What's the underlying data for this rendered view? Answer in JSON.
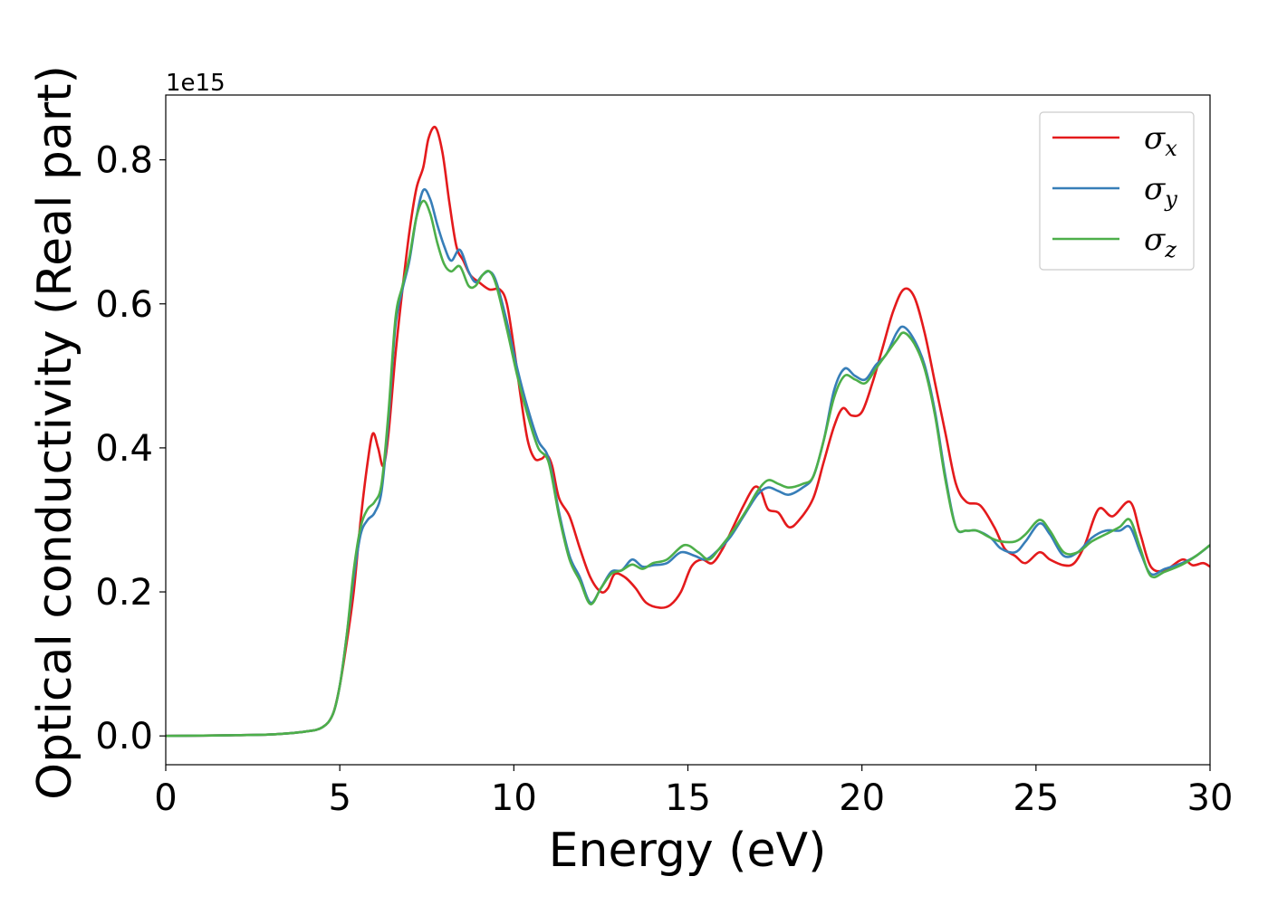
{
  "chart_data": {
    "type": "line",
    "xlabel": "Energy (eV)",
    "ylabel": "Optical conductivity (Real part)",
    "y_offset_label": "1e15",
    "xlim": [
      0,
      30
    ],
    "ylim": [
      -0.04,
      0.89
    ],
    "x_ticks": [
      0,
      5,
      10,
      15,
      20,
      25,
      30
    ],
    "y_ticks": [
      0.0,
      0.2,
      0.4,
      0.6,
      0.8
    ],
    "grid": false,
    "legend_position": "top-right",
    "series": [
      {
        "name": "σx",
        "symbol": "σ",
        "subscript": "x",
        "color": "#e41a1c",
        "points": [
          [
            0,
            0
          ],
          [
            2,
            0.001
          ],
          [
            3,
            0.002
          ],
          [
            4,
            0.006
          ],
          [
            4.5,
            0.012
          ],
          [
            4.8,
            0.03
          ],
          [
            5.0,
            0.07
          ],
          [
            5.2,
            0.13
          ],
          [
            5.4,
            0.2
          ],
          [
            5.6,
            0.3
          ],
          [
            5.8,
            0.38
          ],
          [
            5.95,
            0.42
          ],
          [
            6.1,
            0.4
          ],
          [
            6.25,
            0.375
          ],
          [
            6.4,
            0.42
          ],
          [
            6.6,
            0.53
          ],
          [
            6.8,
            0.62
          ],
          [
            7.0,
            0.7
          ],
          [
            7.2,
            0.76
          ],
          [
            7.4,
            0.79
          ],
          [
            7.55,
            0.83
          ],
          [
            7.75,
            0.845
          ],
          [
            7.95,
            0.81
          ],
          [
            8.15,
            0.74
          ],
          [
            8.35,
            0.68
          ],
          [
            8.55,
            0.66
          ],
          [
            8.75,
            0.64
          ],
          [
            9.0,
            0.63
          ],
          [
            9.3,
            0.62
          ],
          [
            9.6,
            0.62
          ],
          [
            9.8,
            0.6
          ],
          [
            10.0,
            0.54
          ],
          [
            10.2,
            0.47
          ],
          [
            10.4,
            0.41
          ],
          [
            10.6,
            0.385
          ],
          [
            10.8,
            0.385
          ],
          [
            10.95,
            0.39
          ],
          [
            11.1,
            0.375
          ],
          [
            11.3,
            0.33
          ],
          [
            11.6,
            0.305
          ],
          [
            11.9,
            0.26
          ],
          [
            12.2,
            0.22
          ],
          [
            12.5,
            0.2
          ],
          [
            12.7,
            0.205
          ],
          [
            12.9,
            0.225
          ],
          [
            13.2,
            0.22
          ],
          [
            13.5,
            0.205
          ],
          [
            13.8,
            0.185
          ],
          [
            14.2,
            0.178
          ],
          [
            14.5,
            0.182
          ],
          [
            14.8,
            0.2
          ],
          [
            15.1,
            0.235
          ],
          [
            15.4,
            0.245
          ],
          [
            15.7,
            0.24
          ],
          [
            16.0,
            0.26
          ],
          [
            16.3,
            0.29
          ],
          [
            16.6,
            0.32
          ],
          [
            16.9,
            0.345
          ],
          [
            17.1,
            0.34
          ],
          [
            17.3,
            0.315
          ],
          [
            17.6,
            0.31
          ],
          [
            17.9,
            0.29
          ],
          [
            18.2,
            0.3
          ],
          [
            18.6,
            0.33
          ],
          [
            18.9,
            0.38
          ],
          [
            19.2,
            0.43
          ],
          [
            19.45,
            0.455
          ],
          [
            19.7,
            0.445
          ],
          [
            20.0,
            0.45
          ],
          [
            20.3,
            0.49
          ],
          [
            20.6,
            0.54
          ],
          [
            20.9,
            0.59
          ],
          [
            21.2,
            0.62
          ],
          [
            21.5,
            0.61
          ],
          [
            21.8,
            0.56
          ],
          [
            22.1,
            0.49
          ],
          [
            22.4,
            0.42
          ],
          [
            22.7,
            0.35
          ],
          [
            23.0,
            0.325
          ],
          [
            23.4,
            0.32
          ],
          [
            23.8,
            0.29
          ],
          [
            24.1,
            0.26
          ],
          [
            24.4,
            0.25
          ],
          [
            24.7,
            0.24
          ],
          [
            25.1,
            0.255
          ],
          [
            25.4,
            0.245
          ],
          [
            25.8,
            0.237
          ],
          [
            26.1,
            0.24
          ],
          [
            26.4,
            0.265
          ],
          [
            26.8,
            0.315
          ],
          [
            27.2,
            0.305
          ],
          [
            27.7,
            0.325
          ],
          [
            28.0,
            0.28
          ],
          [
            28.3,
            0.235
          ],
          [
            28.7,
            0.23
          ],
          [
            29.2,
            0.245
          ],
          [
            29.5,
            0.237
          ],
          [
            29.8,
            0.24
          ],
          [
            30.0,
            0.235
          ]
        ]
      },
      {
        "name": "σy",
        "symbol": "σ",
        "subscript": "y",
        "color": "#377eb8",
        "points": [
          [
            0,
            0
          ],
          [
            2,
            0.001
          ],
          [
            3,
            0.002
          ],
          [
            4,
            0.006
          ],
          [
            4.5,
            0.012
          ],
          [
            4.8,
            0.03
          ],
          [
            5.0,
            0.07
          ],
          [
            5.2,
            0.14
          ],
          [
            5.4,
            0.22
          ],
          [
            5.6,
            0.28
          ],
          [
            5.8,
            0.3
          ],
          [
            6.0,
            0.31
          ],
          [
            6.2,
            0.34
          ],
          [
            6.4,
            0.44
          ],
          [
            6.6,
            0.57
          ],
          [
            6.8,
            0.62
          ],
          [
            7.0,
            0.66
          ],
          [
            7.2,
            0.72
          ],
          [
            7.4,
            0.758
          ],
          [
            7.6,
            0.745
          ],
          [
            7.8,
            0.71
          ],
          [
            8.0,
            0.68
          ],
          [
            8.2,
            0.66
          ],
          [
            8.45,
            0.675
          ],
          [
            8.7,
            0.645
          ],
          [
            8.9,
            0.63
          ],
          [
            9.1,
            0.64
          ],
          [
            9.3,
            0.645
          ],
          [
            9.5,
            0.63
          ],
          [
            9.8,
            0.575
          ],
          [
            10.1,
            0.51
          ],
          [
            10.4,
            0.455
          ],
          [
            10.7,
            0.41
          ],
          [
            11.0,
            0.385
          ],
          [
            11.3,
            0.31
          ],
          [
            11.6,
            0.25
          ],
          [
            11.9,
            0.22
          ],
          [
            12.2,
            0.185
          ],
          [
            12.5,
            0.205
          ],
          [
            12.8,
            0.228
          ],
          [
            13.1,
            0.23
          ],
          [
            13.4,
            0.245
          ],
          [
            13.7,
            0.235
          ],
          [
            14.0,
            0.237
          ],
          [
            14.4,
            0.24
          ],
          [
            14.8,
            0.255
          ],
          [
            15.2,
            0.25
          ],
          [
            15.5,
            0.245
          ],
          [
            15.8,
            0.255
          ],
          [
            16.2,
            0.275
          ],
          [
            16.6,
            0.305
          ],
          [
            17.0,
            0.335
          ],
          [
            17.3,
            0.345
          ],
          [
            17.6,
            0.34
          ],
          [
            17.9,
            0.335
          ],
          [
            18.3,
            0.345
          ],
          [
            18.6,
            0.36
          ],
          [
            18.9,
            0.41
          ],
          [
            19.2,
            0.48
          ],
          [
            19.5,
            0.51
          ],
          [
            19.8,
            0.5
          ],
          [
            20.1,
            0.495
          ],
          [
            20.4,
            0.515
          ],
          [
            20.7,
            0.53
          ],
          [
            21.0,
            0.56
          ],
          [
            21.2,
            0.568
          ],
          [
            21.5,
            0.55
          ],
          [
            21.8,
            0.515
          ],
          [
            22.1,
            0.45
          ],
          [
            22.4,
            0.36
          ],
          [
            22.7,
            0.29
          ],
          [
            23.0,
            0.285
          ],
          [
            23.3,
            0.285
          ],
          [
            23.7,
            0.275
          ],
          [
            24.0,
            0.26
          ],
          [
            24.4,
            0.255
          ],
          [
            24.7,
            0.27
          ],
          [
            25.1,
            0.295
          ],
          [
            25.4,
            0.28
          ],
          [
            25.8,
            0.25
          ],
          [
            26.2,
            0.255
          ],
          [
            26.6,
            0.275
          ],
          [
            27.0,
            0.285
          ],
          [
            27.4,
            0.285
          ],
          [
            27.7,
            0.29
          ],
          [
            28.0,
            0.255
          ],
          [
            28.3,
            0.225
          ],
          [
            28.7,
            0.232
          ],
          [
            29.2,
            0.24
          ],
          [
            29.6,
            0.25
          ],
          [
            30.0,
            0.265
          ]
        ]
      },
      {
        "name": "σz",
        "symbol": "σ",
        "subscript": "z",
        "color": "#4daf4a",
        "points": [
          [
            0,
            0
          ],
          [
            2,
            0.001
          ],
          [
            3,
            0.002
          ],
          [
            4,
            0.006
          ],
          [
            4.5,
            0.012
          ],
          [
            4.8,
            0.03
          ],
          [
            5.0,
            0.07
          ],
          [
            5.2,
            0.14
          ],
          [
            5.4,
            0.23
          ],
          [
            5.6,
            0.29
          ],
          [
            5.8,
            0.315
          ],
          [
            6.0,
            0.325
          ],
          [
            6.2,
            0.35
          ],
          [
            6.4,
            0.45
          ],
          [
            6.6,
            0.58
          ],
          [
            6.8,
            0.625
          ],
          [
            7.0,
            0.665
          ],
          [
            7.2,
            0.72
          ],
          [
            7.4,
            0.743
          ],
          [
            7.6,
            0.725
          ],
          [
            7.8,
            0.685
          ],
          [
            8.0,
            0.655
          ],
          [
            8.2,
            0.645
          ],
          [
            8.45,
            0.652
          ],
          [
            8.7,
            0.625
          ],
          [
            8.9,
            0.625
          ],
          [
            9.1,
            0.64
          ],
          [
            9.3,
            0.645
          ],
          [
            9.5,
            0.625
          ],
          [
            9.8,
            0.565
          ],
          [
            10.1,
            0.5
          ],
          [
            10.4,
            0.445
          ],
          [
            10.7,
            0.4
          ],
          [
            11.0,
            0.38
          ],
          [
            11.3,
            0.305
          ],
          [
            11.6,
            0.245
          ],
          [
            11.9,
            0.215
          ],
          [
            12.2,
            0.183
          ],
          [
            12.5,
            0.205
          ],
          [
            12.8,
            0.225
          ],
          [
            13.1,
            0.23
          ],
          [
            13.4,
            0.238
          ],
          [
            13.7,
            0.232
          ],
          [
            14.0,
            0.24
          ],
          [
            14.4,
            0.245
          ],
          [
            14.9,
            0.265
          ],
          [
            15.3,
            0.255
          ],
          [
            15.6,
            0.245
          ],
          [
            15.9,
            0.26
          ],
          [
            16.3,
            0.285
          ],
          [
            16.7,
            0.315
          ],
          [
            17.0,
            0.34
          ],
          [
            17.3,
            0.355
          ],
          [
            17.6,
            0.35
          ],
          [
            17.9,
            0.345
          ],
          [
            18.3,
            0.35
          ],
          [
            18.6,
            0.36
          ],
          [
            18.9,
            0.41
          ],
          [
            19.2,
            0.47
          ],
          [
            19.5,
            0.5
          ],
          [
            19.8,
            0.495
          ],
          [
            20.1,
            0.49
          ],
          [
            20.4,
            0.51
          ],
          [
            20.7,
            0.53
          ],
          [
            21.0,
            0.55
          ],
          [
            21.2,
            0.56
          ],
          [
            21.5,
            0.545
          ],
          [
            21.8,
            0.51
          ],
          [
            22.1,
            0.445
          ],
          [
            22.4,
            0.355
          ],
          [
            22.7,
            0.29
          ],
          [
            23.0,
            0.285
          ],
          [
            23.3,
            0.285
          ],
          [
            23.7,
            0.275
          ],
          [
            24.0,
            0.27
          ],
          [
            24.4,
            0.27
          ],
          [
            24.7,
            0.28
          ],
          [
            25.1,
            0.3
          ],
          [
            25.4,
            0.285
          ],
          [
            25.8,
            0.255
          ],
          [
            26.2,
            0.255
          ],
          [
            26.6,
            0.27
          ],
          [
            27.0,
            0.28
          ],
          [
            27.4,
            0.29
          ],
          [
            27.7,
            0.3
          ],
          [
            28.0,
            0.26
          ],
          [
            28.3,
            0.222
          ],
          [
            28.7,
            0.228
          ],
          [
            29.2,
            0.238
          ],
          [
            29.6,
            0.25
          ],
          [
            30.0,
            0.265
          ]
        ]
      }
    ]
  }
}
